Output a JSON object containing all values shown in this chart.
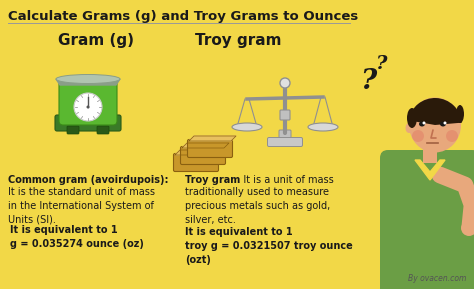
{
  "bg_color": "#f2d847",
  "title": "Calculate Grams (g) and Troy Grams to Ounces",
  "title_fontsize": 9.5,
  "title_color": "#1a1a1a",
  "gram_label": "Gram (g)",
  "troy_label": "Troy gram",
  "by_text": "By ovacen.com",
  "text_color": "#1a1a1a",
  "scale_green": "#5aad3f",
  "scale_dark_green": "#3d8c2a",
  "scale_tray": "#aabaa8",
  "gold_color": "#c8972a",
  "gold_light": "#e8c060",
  "balance_metal": "#c0c0c0",
  "balance_dark": "#909090",
  "skin_color": "#e8a87c",
  "hair_color": "#2a1a0a",
  "shirt_color": "#6b9e45",
  "cheek_color": "#e07060",
  "gram_desc1_bold": "Common gram (avoirdupois):",
  "gram_desc2": "It is the standard unit of mass\nin the International System of\nUnits (SI).",
  "gram_desc3_bold": " It is equivalent to 1\n g = 0.035274 ounce (oz)",
  "troy_desc1_bold": "Troy gram",
  "troy_desc2": ": It is a unit of mass\ntraditionally used to measure\nprecious metals such as gold,\nsilver, etc.",
  "troy_desc3_bold": " It is equivalent to 1\ntroy g = 0.0321507 troy ounce\n(ozt)"
}
